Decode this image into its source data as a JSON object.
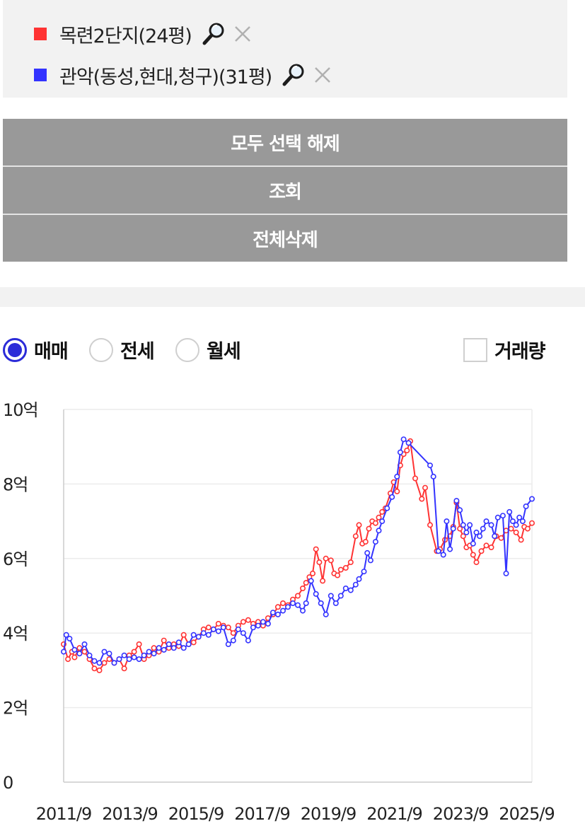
{
  "compare_list": [
    {
      "name": "목련2단지(24평)",
      "color": "#ff3333",
      "search_icon": "magnifier-icon",
      "remove_icon": "close-icon"
    },
    {
      "name": "관악(동성,현대,청구)(31평)",
      "color": "#3333ff",
      "search_icon": "magnifier-icon",
      "remove_icon": "close-icon"
    }
  ],
  "buttons": {
    "deselect_all": "모두 선택 해제",
    "query": "조회",
    "delete_all": "전체삭제"
  },
  "options": {
    "trade_type": [
      {
        "label": "매매",
        "selected": true
      },
      {
        "label": "전세",
        "selected": false
      },
      {
        "label": "월세",
        "selected": false
      }
    ],
    "volume": {
      "label": "거래량",
      "checked": false
    }
  },
  "chart_data": {
    "type": "line",
    "title": "",
    "xlabel": "",
    "ylabel": "",
    "ylim": [
      0,
      10
    ],
    "y_ticks": [
      0,
      2,
      4,
      6,
      8,
      10
    ],
    "y_tick_labels": [
      "0",
      "2억",
      "4억",
      "6억",
      "8억",
      "10억"
    ],
    "x_range": [
      2011.67,
      2025.83
    ],
    "x_ticks": [
      2011.67,
      2013.67,
      2015.67,
      2017.67,
      2019.67,
      2021.67,
      2023.67,
      2025.67
    ],
    "x_tick_labels": [
      "2011/9",
      "2013/9",
      "2015/9",
      "2017/9",
      "2019/9",
      "2021/9",
      "2023/9",
      "2025/9"
    ],
    "grid": true,
    "series": [
      {
        "name": "목련2단지(24평)",
        "color": "#ff3333",
        "points": [
          [
            2011.67,
            3.7
          ],
          [
            2011.8,
            3.3
          ],
          [
            2011.92,
            3.5
          ],
          [
            2012.0,
            3.35
          ],
          [
            2012.15,
            3.6
          ],
          [
            2012.3,
            3.5
          ],
          [
            2012.45,
            3.3
          ],
          [
            2012.6,
            3.05
          ],
          [
            2012.75,
            3.0
          ],
          [
            2012.9,
            3.2
          ],
          [
            2013.05,
            3.3
          ],
          [
            2013.2,
            3.2
          ],
          [
            2013.35,
            3.3
          ],
          [
            2013.5,
            3.05
          ],
          [
            2013.65,
            3.4
          ],
          [
            2013.8,
            3.5
          ],
          [
            2013.95,
            3.7
          ],
          [
            2014.1,
            3.3
          ],
          [
            2014.25,
            3.4
          ],
          [
            2014.4,
            3.6
          ],
          [
            2014.55,
            3.5
          ],
          [
            2014.7,
            3.8
          ],
          [
            2014.85,
            3.6
          ],
          [
            2015.0,
            3.7
          ],
          [
            2015.15,
            3.65
          ],
          [
            2015.3,
            3.95
          ],
          [
            2015.45,
            3.7
          ],
          [
            2015.6,
            3.75
          ],
          [
            2015.75,
            3.9
          ],
          [
            2015.9,
            4.1
          ],
          [
            2016.05,
            4.15
          ],
          [
            2016.2,
            4.1
          ],
          [
            2016.35,
            4.25
          ],
          [
            2016.5,
            4.2
          ],
          [
            2016.65,
            4.15
          ],
          [
            2016.8,
            4.0
          ],
          [
            2016.95,
            4.2
          ],
          [
            2017.1,
            4.3
          ],
          [
            2017.25,
            4.35
          ],
          [
            2017.4,
            4.25
          ],
          [
            2017.55,
            4.3
          ],
          [
            2017.7,
            4.2
          ],
          [
            2017.85,
            4.4
          ],
          [
            2018.0,
            4.5
          ],
          [
            2018.15,
            4.7
          ],
          [
            2018.3,
            4.8
          ],
          [
            2018.45,
            4.75
          ],
          [
            2018.6,
            4.9
          ],
          [
            2018.75,
            5.0
          ],
          [
            2018.9,
            5.2
          ],
          [
            2019.0,
            5.35
          ],
          [
            2019.1,
            5.5
          ],
          [
            2019.2,
            5.6
          ],
          [
            2019.3,
            6.25
          ],
          [
            2019.4,
            5.9
          ],
          [
            2019.5,
            5.4
          ],
          [
            2019.6,
            6.0
          ],
          [
            2019.75,
            5.95
          ],
          [
            2019.85,
            5.6
          ],
          [
            2019.95,
            5.55
          ],
          [
            2020.05,
            5.7
          ],
          [
            2020.2,
            5.75
          ],
          [
            2020.35,
            5.9
          ],
          [
            2020.5,
            6.6
          ],
          [
            2020.6,
            6.9
          ],
          [
            2020.7,
            6.4
          ],
          [
            2020.8,
            6.45
          ],
          [
            2020.9,
            6.8
          ],
          [
            2021.0,
            7.0
          ],
          [
            2021.1,
            6.95
          ],
          [
            2021.2,
            7.1
          ],
          [
            2021.3,
            7.25
          ],
          [
            2021.4,
            7.35
          ],
          [
            2021.55,
            7.75
          ],
          [
            2021.65,
            8.05
          ],
          [
            2021.75,
            7.8
          ],
          [
            2021.85,
            8.5
          ],
          [
            2021.95,
            8.8
          ],
          [
            2022.05,
            8.9
          ],
          [
            2022.15,
            9.15
          ],
          [
            2022.3,
            8.15
          ],
          [
            2022.5,
            7.6
          ],
          [
            2022.6,
            7.9
          ],
          [
            2022.75,
            6.9
          ],
          [
            2022.95,
            6.2
          ],
          [
            2023.05,
            6.25
          ],
          [
            2023.2,
            6.5
          ],
          [
            2023.35,
            6.6
          ],
          [
            2023.45,
            6.85
          ],
          [
            2023.55,
            7.5
          ],
          [
            2023.65,
            6.8
          ],
          [
            2023.75,
            6.6
          ],
          [
            2023.85,
            6.3
          ],
          [
            2023.95,
            6.35
          ],
          [
            2024.05,
            6.1
          ],
          [
            2024.15,
            5.9
          ],
          [
            2024.3,
            6.2
          ],
          [
            2024.45,
            6.35
          ],
          [
            2024.6,
            6.3
          ],
          [
            2024.75,
            6.6
          ],
          [
            2024.9,
            6.55
          ],
          [
            2025.05,
            6.75
          ],
          [
            2025.2,
            6.8
          ],
          [
            2025.35,
            6.7
          ],
          [
            2025.5,
            6.5
          ],
          [
            2025.6,
            6.85
          ],
          [
            2025.7,
            6.8
          ],
          [
            2025.83,
            6.95
          ]
        ]
      },
      {
        "name": "관악(동성,현대,청구)(31평)",
        "color": "#3333ff",
        "points": [
          [
            2011.67,
            3.5
          ],
          [
            2011.75,
            3.95
          ],
          [
            2011.85,
            3.85
          ],
          [
            2012.0,
            3.55
          ],
          [
            2012.15,
            3.45
          ],
          [
            2012.3,
            3.7
          ],
          [
            2012.45,
            3.4
          ],
          [
            2012.6,
            3.25
          ],
          [
            2012.75,
            3.2
          ],
          [
            2012.9,
            3.5
          ],
          [
            2013.05,
            3.45
          ],
          [
            2013.2,
            3.2
          ],
          [
            2013.35,
            3.3
          ],
          [
            2013.5,
            3.4
          ],
          [
            2013.65,
            3.3
          ],
          [
            2013.8,
            3.35
          ],
          [
            2013.95,
            3.3
          ],
          [
            2014.1,
            3.4
          ],
          [
            2014.25,
            3.5
          ],
          [
            2014.4,
            3.45
          ],
          [
            2014.55,
            3.6
          ],
          [
            2014.7,
            3.55
          ],
          [
            2014.85,
            3.7
          ],
          [
            2015.0,
            3.6
          ],
          [
            2015.15,
            3.75
          ],
          [
            2015.3,
            3.6
          ],
          [
            2015.45,
            3.7
          ],
          [
            2015.6,
            3.95
          ],
          [
            2015.75,
            3.9
          ],
          [
            2015.9,
            4.0
          ],
          [
            2016.05,
            3.95
          ],
          [
            2016.2,
            4.1
          ],
          [
            2016.35,
            4.05
          ],
          [
            2016.5,
            4.15
          ],
          [
            2016.65,
            3.7
          ],
          [
            2016.8,
            3.8
          ],
          [
            2016.95,
            4.1
          ],
          [
            2017.1,
            4.0
          ],
          [
            2017.25,
            3.8
          ],
          [
            2017.4,
            4.15
          ],
          [
            2017.55,
            4.2
          ],
          [
            2017.7,
            4.3
          ],
          [
            2017.85,
            4.25
          ],
          [
            2018.0,
            4.55
          ],
          [
            2018.15,
            4.5
          ],
          [
            2018.3,
            4.6
          ],
          [
            2018.45,
            4.7
          ],
          [
            2018.6,
            4.8
          ],
          [
            2018.75,
            4.75
          ],
          [
            2018.9,
            4.6
          ],
          [
            2019.0,
            4.8
          ],
          [
            2019.15,
            5.4
          ],
          [
            2019.3,
            5.05
          ],
          [
            2019.45,
            4.8
          ],
          [
            2019.6,
            4.5
          ],
          [
            2019.75,
            5.0
          ],
          [
            2019.9,
            4.8
          ],
          [
            2020.05,
            5.0
          ],
          [
            2020.2,
            5.2
          ],
          [
            2020.35,
            5.15
          ],
          [
            2020.5,
            5.3
          ],
          [
            2020.6,
            5.45
          ],
          [
            2020.75,
            5.65
          ],
          [
            2020.85,
            6.15
          ],
          [
            2020.95,
            5.95
          ],
          [
            2021.1,
            6.45
          ],
          [
            2021.2,
            6.75
          ],
          [
            2021.3,
            7.0
          ],
          [
            2021.45,
            7.35
          ],
          [
            2021.6,
            7.65
          ],
          [
            2021.75,
            8.2
          ],
          [
            2021.85,
            8.85
          ],
          [
            2021.95,
            9.2
          ],
          [
            2022.1,
            9.1
          ],
          [
            2022.75,
            8.5
          ],
          [
            2022.85,
            8.2
          ],
          [
            2023.0,
            6.2
          ],
          [
            2023.15,
            6.1
          ],
          [
            2023.25,
            7.0
          ],
          [
            2023.35,
            6.25
          ],
          [
            2023.45,
            6.8
          ],
          [
            2023.55,
            7.55
          ],
          [
            2023.65,
            7.3
          ],
          [
            2023.75,
            6.9
          ],
          [
            2023.85,
            6.7
          ],
          [
            2023.95,
            6.9
          ],
          [
            2024.05,
            6.4
          ],
          [
            2024.15,
            6.7
          ],
          [
            2024.25,
            6.6
          ],
          [
            2024.35,
            6.8
          ],
          [
            2024.45,
            7.0
          ],
          [
            2024.6,
            6.9
          ],
          [
            2024.7,
            6.6
          ],
          [
            2024.8,
            7.1
          ],
          [
            2024.95,
            7.15
          ],
          [
            2025.05,
            5.6
          ],
          [
            2025.15,
            7.25
          ],
          [
            2025.25,
            7.0
          ],
          [
            2025.35,
            6.9
          ],
          [
            2025.45,
            7.1
          ],
          [
            2025.55,
            7.0
          ],
          [
            2025.65,
            7.4
          ],
          [
            2025.83,
            7.6
          ]
        ]
      }
    ]
  }
}
